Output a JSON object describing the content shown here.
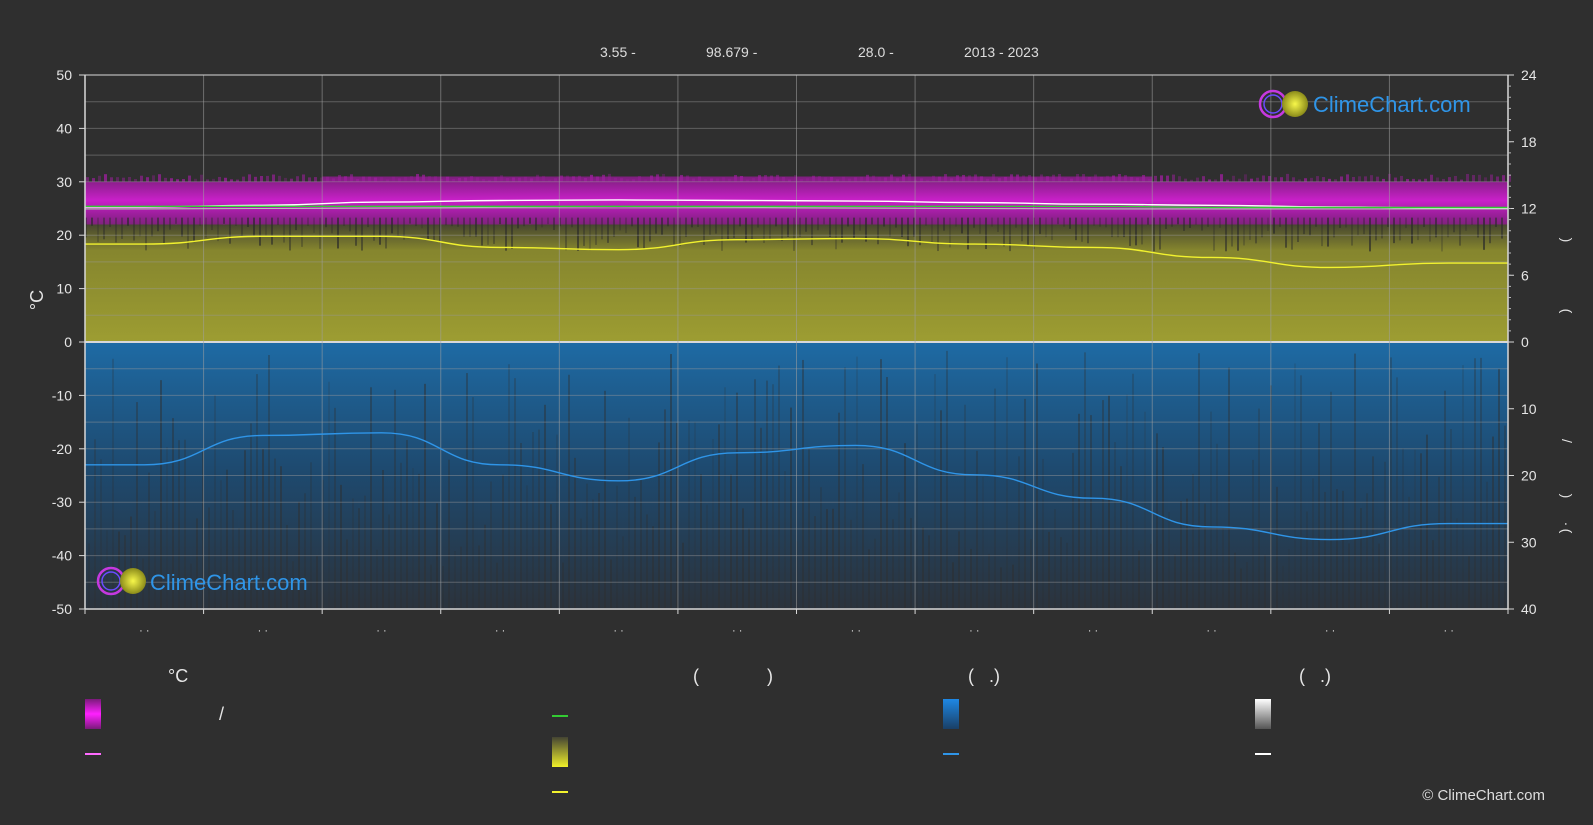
{
  "header": {
    "lat": "3.55 -",
    "lon": "98.679 -",
    "elev": "28.0 -",
    "period": "2013 - 2023"
  },
  "axes": {
    "left_label": "°C",
    "left_ticks": [
      "50",
      "40",
      "30",
      "20",
      "10",
      "0",
      "-10",
      "-20",
      "-30",
      "-40",
      "-50"
    ],
    "right_top_ticks": [
      "24",
      "18",
      "12",
      "6",
      "0"
    ],
    "right_bottom_ticks": [
      "10",
      "20",
      "30",
      "40"
    ],
    "right_glyphs": [
      ")",
      "(",
      "/",
      ")",
      "·",
      "("
    ],
    "month_ticks": [
      "· ·",
      "· ·",
      "· ·",
      "· ·",
      "· ·",
      "· ·",
      "· ·",
      "· ·",
      "· ·",
      "· ·",
      "· ·",
      "· ·"
    ]
  },
  "logo": {
    "text": "ClimeChart.com"
  },
  "legend": {
    "col1_heading": "°C",
    "col1_slash": "/",
    "col2_heading_open": "(",
    "col2_heading_close": ")",
    "col3_heading": "(   .)",
    "col4_heading": "(   .)"
  },
  "copyright": "© ClimeChart.com",
  "colors": {
    "background": "#2f2f2f",
    "temp_band": "#d21fd2",
    "temp_line": "#ff6bff",
    "daylight_line": "#33cc33",
    "sunshine_band": "#b5b52a",
    "sunshine_line": "#f2f22e",
    "rain_band": "#1a6aa8",
    "rain_line": "#2f95e8",
    "snow_line": "#ffffff",
    "logo_text": "#2f95e8"
  },
  "chart_data": {
    "type": "line",
    "x_unit": "month",
    "x": [
      0.5,
      1.5,
      2.5,
      3.5,
      4.5,
      5.5,
      6.5,
      7.5,
      8.5,
      9.5,
      10.5,
      11.5
    ],
    "ylim_left": [
      -50,
      50
    ],
    "ylim_right_top": [
      0,
      24
    ],
    "ylim_right_bottom": [
      0,
      40
    ],
    "grid": true,
    "series": [
      {
        "values": [
          25.3,
          25.6,
          26.2,
          26.5,
          26.6,
          26.5,
          26.4,
          26.1,
          25.8,
          25.6,
          25.3,
          25.1
        ],
        "axis": "left"
      },
      {
        "values": [
          24.9,
          25.0,
          25.1,
          25.2,
          25.3,
          25.2,
          25.1,
          25.0,
          24.9,
          24.9,
          24.9,
          24.9
        ],
        "axis": "left"
      },
      {
        "values": [
          12.2,
          12.2,
          12.2,
          12.2,
          12.2,
          12.2,
          12.2,
          12.2,
          12.2,
          12.1,
          12.1,
          12.1
        ],
        "axis": "right_top"
      },
      {
        "values": [
          8.8,
          9.5,
          9.5,
          8.5,
          8.3,
          9.2,
          9.3,
          8.8,
          8.5,
          7.6,
          6.7,
          7.1
        ],
        "axis": "right_top"
      },
      {
        "values": [
          18.4,
          14.0,
          13.6,
          18.4,
          20.8,
          16.6,
          15.5,
          19.9,
          23.4,
          27.7,
          29.6,
          27.2
        ],
        "axis": "right_bottom"
      },
      {
        "values": [
          0,
          0,
          0,
          0,
          0,
          0,
          0,
          0,
          0,
          0,
          0,
          0
        ],
        "axis": "right_bottom"
      }
    ],
    "bands": {
      "temp_min": [
        22,
        22,
        22,
        22,
        22,
        22,
        22,
        22,
        22,
        22,
        22,
        22
      ],
      "temp_max": [
        30,
        30,
        31,
        31,
        31,
        31,
        31,
        31,
        31,
        30,
        30,
        30
      ],
      "sunshine_top": [
        11,
        11,
        11,
        11,
        11,
        11,
        11,
        11,
        11,
        11,
        11,
        11
      ],
      "rain_bottom": [
        40,
        40,
        40,
        40,
        40,
        40,
        40,
        40,
        40,
        40,
        40,
        40
      ]
    }
  }
}
